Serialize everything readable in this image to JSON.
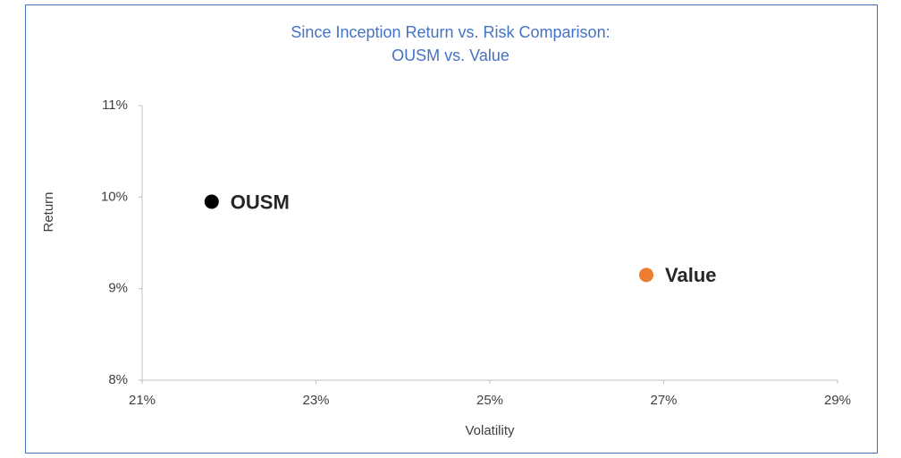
{
  "chart_data": {
    "type": "scatter",
    "title": "Since Inception Return vs. Risk Comparison:",
    "subtitle": "OUSM vs. Value",
    "x_label": "Volatility",
    "y_label": "Return",
    "xlim": [
      21,
      29
    ],
    "xticks": [
      {
        "value": 21,
        "label": "21%"
      },
      {
        "value": 23,
        "label": "23%"
      },
      {
        "value": 25,
        "label": "25%"
      },
      {
        "value": 27,
        "label": "27%"
      },
      {
        "value": 29,
        "label": "29%"
      }
    ],
    "ylim": [
      8,
      11
    ],
    "yticks": [
      {
        "value": 8,
        "label": "8%"
      },
      {
        "value": 9,
        "label": "9%"
      },
      {
        "value": 10,
        "label": "10%"
      },
      {
        "value": 11,
        "label": "11%"
      }
    ],
    "grid": false,
    "series": [
      {
        "name": "OUSM",
        "color": "#000000",
        "x": [
          21.8
        ],
        "values": [
          9.95
        ]
      },
      {
        "name": "Value",
        "color": "#ed7d31",
        "x": [
          26.8
        ],
        "values": [
          9.15
        ]
      }
    ]
  }
}
